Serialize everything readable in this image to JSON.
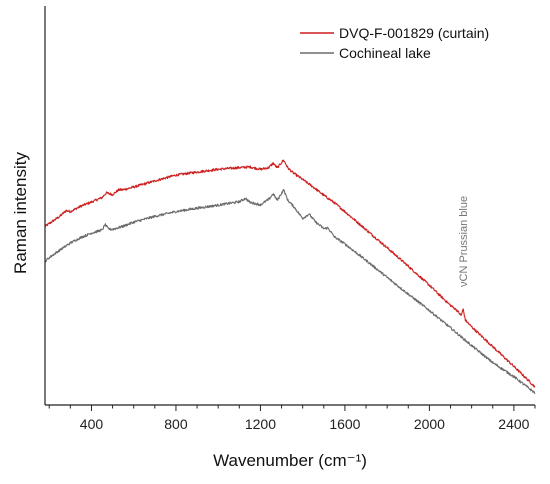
{
  "chart_data": {
    "type": "line",
    "title": "",
    "xlabel": "Wavenumber (cm⁻¹)",
    "ylabel": "Raman intensity",
    "xlim": [
      180,
      2500
    ],
    "ylim": [
      0,
      100
    ],
    "xticks": [
      400,
      800,
      1200,
      1600,
      2000,
      2400
    ],
    "x_minor_step": 100,
    "y_tick_labels": false,
    "grid": false,
    "legend_position": "top-right",
    "annotation": {
      "text": "νCN Prussian blue",
      "x": 2160
    },
    "series": [
      {
        "name": "DVQ-F-001829 (curtain)",
        "color": "#cc1f1f",
        "points": [
          [
            180,
            48.8
          ],
          [
            200,
            49.7
          ],
          [
            250,
            51.8
          ],
          [
            280,
            53.5
          ],
          [
            300,
            53.2
          ],
          [
            350,
            54.8
          ],
          [
            400,
            56.0
          ],
          [
            450,
            57.3
          ],
          [
            470,
            58.7
          ],
          [
            500,
            58.2
          ],
          [
            530,
            59.6
          ],
          [
            550,
            59.6
          ],
          [
            600,
            60.4
          ],
          [
            700,
            62.2
          ],
          [
            800,
            63.9
          ],
          [
            900,
            64.8
          ],
          [
            1000,
            65.6
          ],
          [
            1100,
            66.1
          ],
          [
            1150,
            66.3
          ],
          [
            1200,
            65.6
          ],
          [
            1240,
            66.1
          ],
          [
            1260,
            67.4
          ],
          [
            1280,
            66.0
          ],
          [
            1300,
            67.6
          ],
          [
            1310,
            68.3
          ],
          [
            1330,
            66.0
          ],
          [
            1350,
            64.8
          ],
          [
            1400,
            62.6
          ],
          [
            1450,
            60.4
          ],
          [
            1500,
            58.0
          ],
          [
            1550,
            55.8
          ],
          [
            1600,
            53.2
          ],
          [
            1700,
            47.9
          ],
          [
            1800,
            42.6
          ],
          [
            1900,
            37.2
          ],
          [
            2000,
            31.6
          ],
          [
            2050,
            28.6
          ],
          [
            2100,
            25.7
          ],
          [
            2130,
            24.3
          ],
          [
            2150,
            22.7
          ],
          [
            2160,
            24.6
          ],
          [
            2170,
            21.4
          ],
          [
            2200,
            19.4
          ],
          [
            2300,
            13.6
          ],
          [
            2400,
            7.8
          ],
          [
            2500,
            1.8
          ]
        ]
      },
      {
        "name": "Cochineal lake",
        "color": "#6b6b6b",
        "points": [
          [
            180,
            38.6
          ],
          [
            200,
            39.7
          ],
          [
            250,
            41.9
          ],
          [
            300,
            44.0
          ],
          [
            350,
            45.6
          ],
          [
            400,
            46.9
          ],
          [
            450,
            47.8
          ],
          [
            465,
            49.4
          ],
          [
            480,
            48.1
          ],
          [
            500,
            48.0
          ],
          [
            550,
            48.9
          ],
          [
            600,
            50.1
          ],
          [
            700,
            51.8
          ],
          [
            800,
            53.2
          ],
          [
            900,
            54.2
          ],
          [
            1000,
            55.1
          ],
          [
            1100,
            56.1
          ],
          [
            1130,
            57.1
          ],
          [
            1150,
            55.9
          ],
          [
            1200,
            55.2
          ],
          [
            1240,
            56.8
          ],
          [
            1260,
            58.4
          ],
          [
            1280,
            56.5
          ],
          [
            1300,
            58.6
          ],
          [
            1310,
            59.6
          ],
          [
            1330,
            56.5
          ],
          [
            1360,
            54.5
          ],
          [
            1400,
            51.2
          ],
          [
            1430,
            52.5
          ],
          [
            1460,
            50.2
          ],
          [
            1500,
            48.2
          ],
          [
            1520,
            48.4
          ],
          [
            1550,
            45.8
          ],
          [
            1600,
            43.7
          ],
          [
            1700,
            38.9
          ],
          [
            1800,
            33.9
          ],
          [
            1900,
            29.0
          ],
          [
            2000,
            24.2
          ],
          [
            2100,
            19.1
          ],
          [
            2200,
            13.9
          ],
          [
            2300,
            8.9
          ],
          [
            2400,
            4.8
          ],
          [
            2500,
            0
          ]
        ]
      }
    ]
  }
}
